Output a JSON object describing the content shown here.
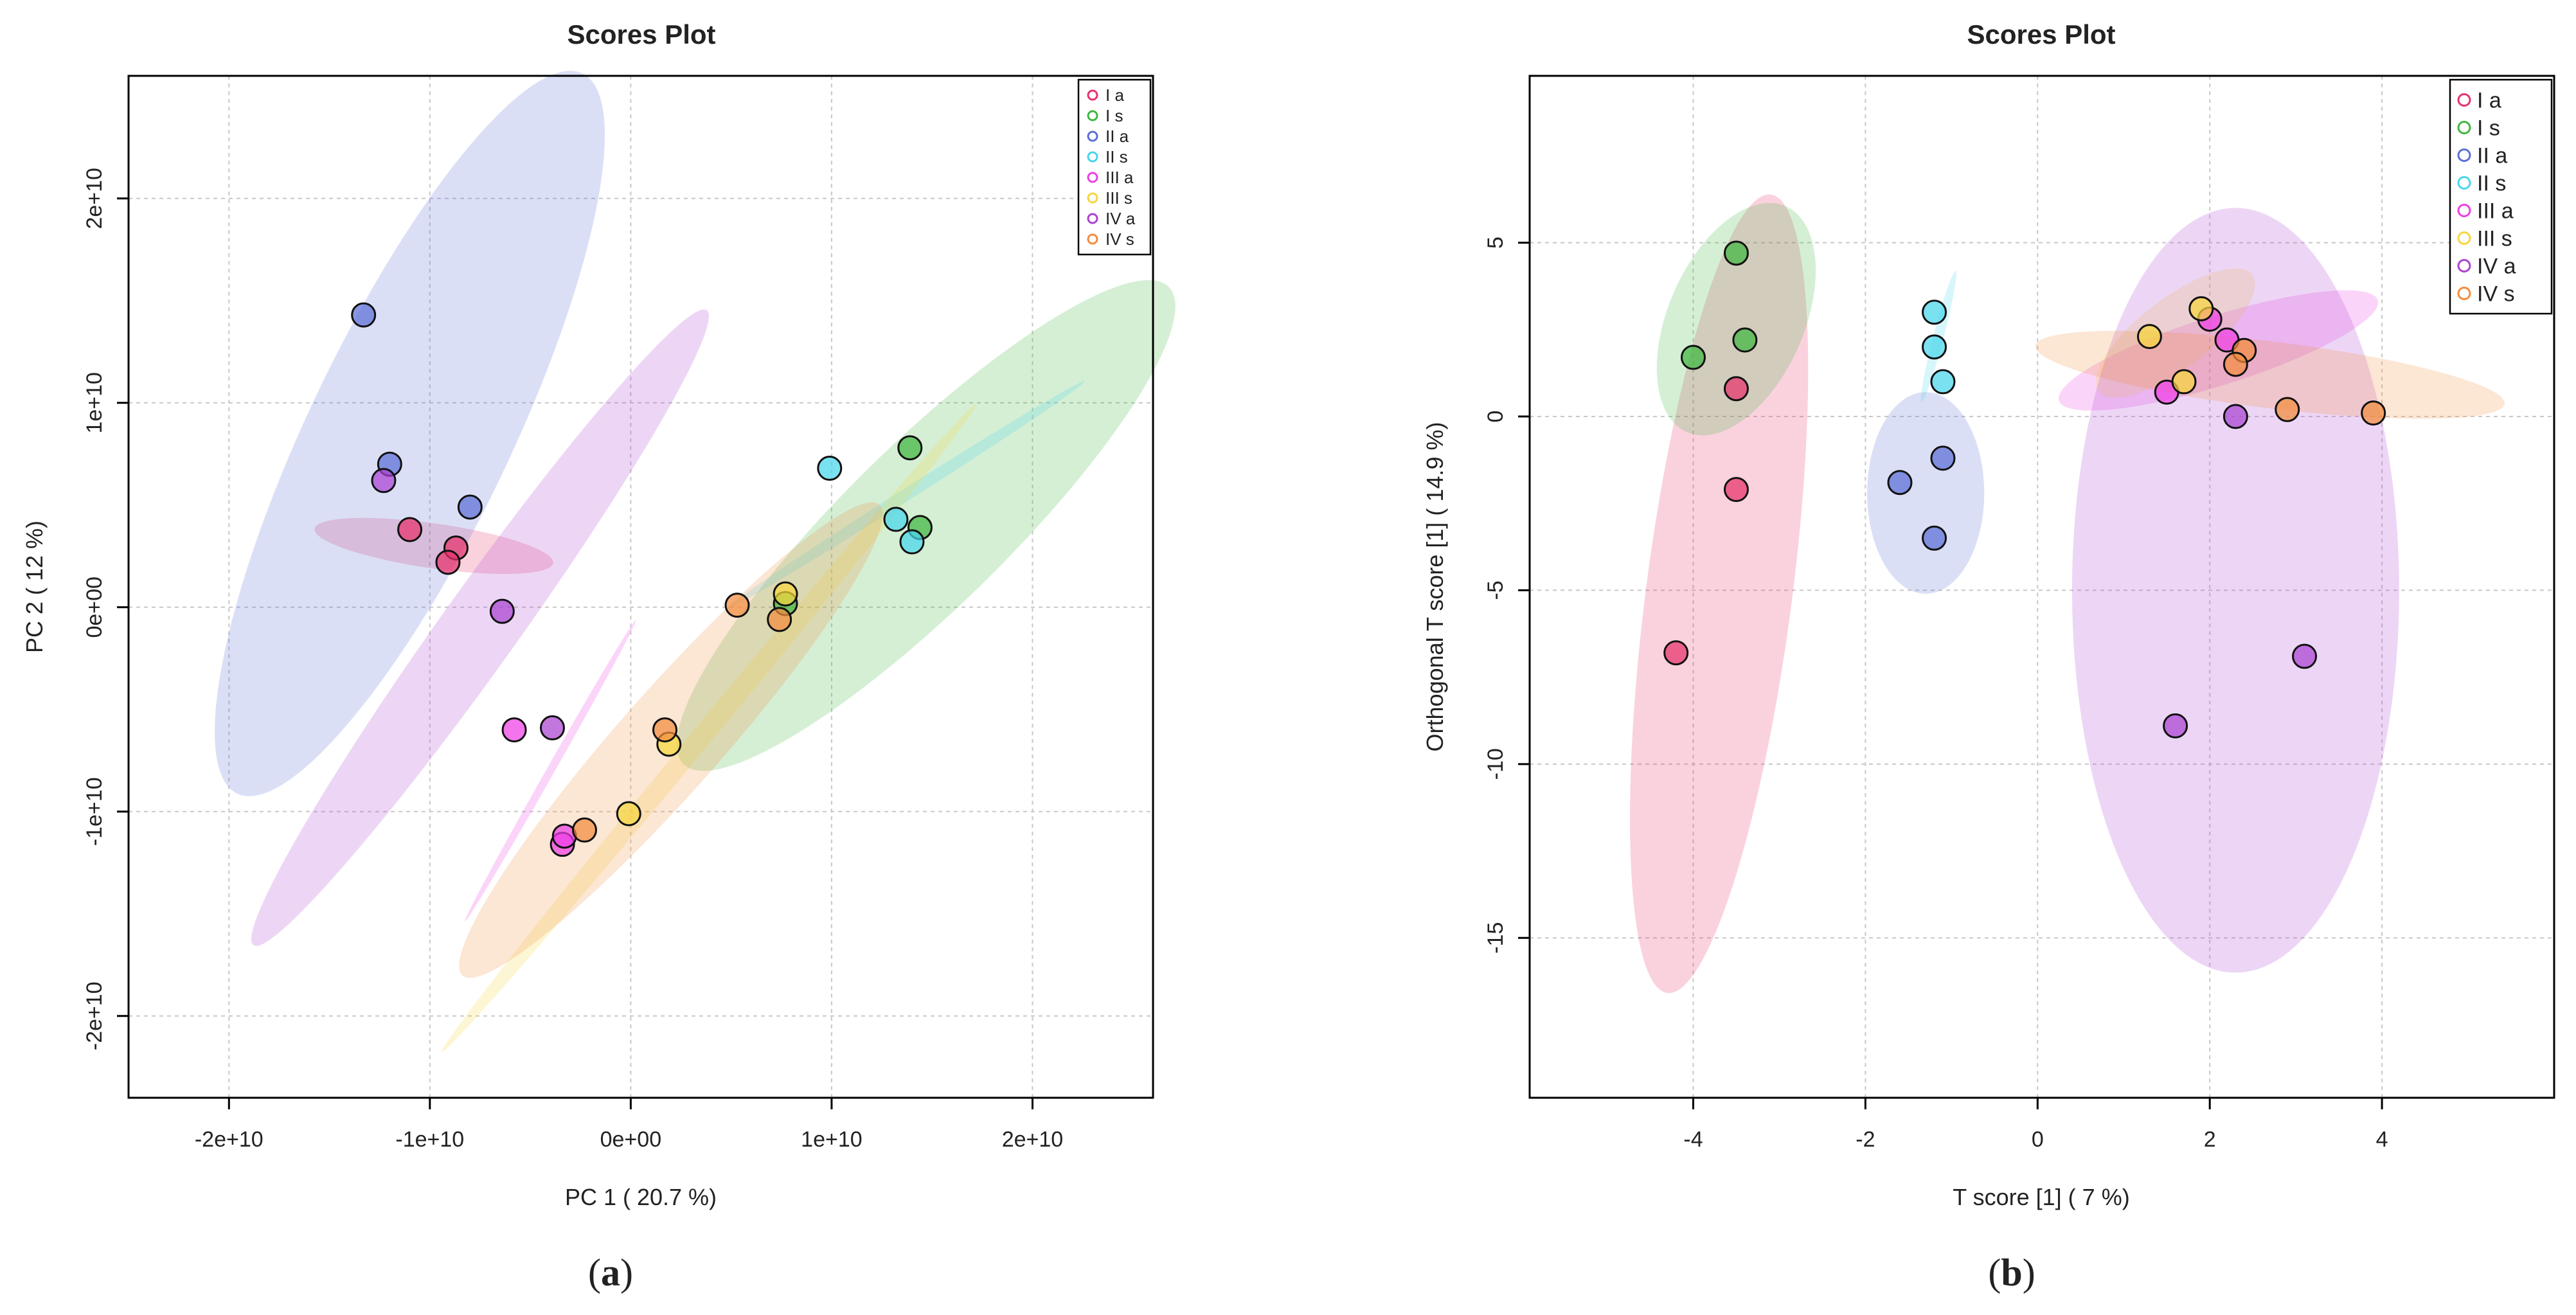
{
  "figure": {
    "caption_a": "a",
    "caption_b": "b"
  },
  "chart_data": [
    {
      "type": "scatter",
      "panel": "a",
      "title": "Scores Plot",
      "xlabel": "PC 1 ( 20.7 %)",
      "ylabel": "PC 2 ( 12 %)",
      "xlim": [
        -25000000000.0,
        26000000000.0
      ],
      "ylim": [
        -24000000000.0,
        26000000000.0
      ],
      "xticks": [
        -20000000000.0,
        -10000000000.0,
        0,
        10000000000.0,
        20000000000.0
      ],
      "xtick_labels": [
        "-2e+10",
        "-1e+10",
        "0e+00",
        "1e+10",
        "2e+10"
      ],
      "yticks": [
        -20000000000.0,
        -10000000000.0,
        0,
        10000000000.0,
        20000000000.0
      ],
      "ytick_labels": [
        "-2e+10",
        "-1e+10",
        "0e+00",
        "1e+10",
        "2e+10"
      ],
      "grid": true,
      "legend_position": "top-right",
      "series": [
        {
          "name": "I a",
          "color": "#e8326b",
          "points": [
            [
              -11000000000.0,
              3800000000.0
            ],
            [
              -8700000000.0,
              2900000000.0
            ],
            [
              -9100000000.0,
              2200000000.0
            ]
          ],
          "ellipse": {
            "cx": -9800000000.0,
            "cy": 3000000000.0,
            "rx": 6000000000.0,
            "ry": 1100000000.0,
            "angle_deg": -8
          }
        },
        {
          "name": "I s",
          "color": "#40b640",
          "points": [
            [
              13900000000.0,
              7800000000.0
            ],
            [
              14400000000.0,
              3900000000.0
            ],
            [
              7700000000.0,
              180000000.0
            ]
          ],
          "ellipse": {
            "cx": 14700000000.0,
            "cy": 4000000000.0,
            "rx": 16800000000.0,
            "ry": 4000000000.0,
            "angle_deg": 44
          }
        },
        {
          "name": "II a",
          "color": "#5b6fd6",
          "points": [
            [
              -13300000000.0,
              14300000000.0
            ],
            [
              -12000000000.0,
              7000000000.0
            ],
            [
              -8000000000.0,
              4900000000.0
            ]
          ],
          "ellipse": {
            "cx": -11000000000.0,
            "cy": 8500000000.0,
            "rx": 19600000000.0,
            "ry": 5000000000.0,
            "angle_deg": 64
          }
        },
        {
          "name": "II s",
          "color": "#47d5ec",
          "points": [
            [
              9900000000.0,
              6800000000.0
            ],
            [
              13200000000.0,
              4300000000.0
            ],
            [
              14000000000.0,
              3200000000.0
            ]
          ],
          "ellipse": {
            "cx": 13700000000.0,
            "cy": 5500000000.0,
            "rx": 10500000000.0,
            "ry": 300000000.0,
            "angle_deg": 32
          }
        },
        {
          "name": "III a",
          "color": "#ee3ee4",
          "points": [
            [
              -5800000000.0,
              -6000000000.0
            ],
            [
              -3400000000.0,
              -11600000000.0
            ],
            [
              -3300000000.0,
              -11200000000.0
            ]
          ],
          "ellipse": {
            "cx": -4000000000.0,
            "cy": -8000000000.0,
            "rx": 8500000000.0,
            "ry": 200000000.0,
            "angle_deg": 60
          }
        },
        {
          "name": "III s",
          "color": "#f7d53d",
          "points": [
            [
              7700000000.0,
              650000000.0
            ],
            [
              1900000000.0,
              -6700000000.0
            ],
            [
              -100000000.0,
              -10100000000.0
            ]
          ],
          "ellipse": {
            "cx": 3900000000.0,
            "cy": -5900000000.0,
            "rx": 20700000000.0,
            "ry": 500000000.0,
            "angle_deg": 50
          }
        },
        {
          "name": "IV a",
          "color": "#ab43d2",
          "points": [
            [
              -12300000000.0,
              6200000000.0
            ],
            [
              -6400000000.0,
              -200000000.0
            ],
            [
              -3900000000.0,
              -5900000000.0
            ]
          ],
          "ellipse": {
            "cx": -7500000000.0,
            "cy": -1000000000.0,
            "rx": 19200000000.0,
            "ry": 1900000000.0,
            "angle_deg": 54
          }
        },
        {
          "name": "IV s",
          "color": "#f28c3d",
          "points": [
            [
              5300000000.0,
              100000000.0
            ],
            [
              7400000000.0,
              -600000000.0
            ],
            [
              1700000000.0,
              -6000000000.0
            ],
            [
              -2300000000.0,
              -10900000000.0
            ]
          ],
          "ellipse": {
            "cx": 2000000000.0,
            "cy": -6500000000.0,
            "rx": 15500000000.0,
            "ry": 2500000000.0,
            "angle_deg": 48
          }
        }
      ]
    },
    {
      "type": "scatter",
      "panel": "b",
      "title": "Scores Plot",
      "xlabel": "T score [1] ( 7 %)",
      "ylabel": "Orthogonal T score [1] ( 14.9 %)",
      "xlim": [
        -5.9,
        6.0
      ],
      "ylim": [
        -19.6,
        9.8
      ],
      "xticks": [
        -4,
        -2,
        0,
        2,
        4
      ],
      "xtick_labels": [
        "-4",
        "-2",
        "0",
        "2",
        "4"
      ],
      "yticks": [
        -15,
        -10,
        -5,
        0,
        5
      ],
      "ytick_labels": [
        "-15",
        "-10",
        "-5",
        "0",
        "5"
      ],
      "grid": true,
      "legend_position": "top-right",
      "series": [
        {
          "name": "I a",
          "color": "#e8326b",
          "points": [
            [
              -3.5,
              0.8
            ],
            [
              -3.5,
              -2.1
            ],
            [
              -4.2,
              -6.8
            ]
          ],
          "ellipse": {
            "cx": -3.7,
            "cy": -5.1,
            "rx": 11.5,
            "ry": 0.85,
            "angle_deg": 87
          }
        },
        {
          "name": "I s",
          "color": "#40b640",
          "points": [
            [
              -3.5,
              4.7
            ],
            [
              -4.0,
              1.7
            ],
            [
              -3.4,
              2.2
            ]
          ],
          "ellipse": {
            "cx": -3.5,
            "cy": 2.8,
            "rx": 3.3,
            "ry": 0.8,
            "angle_deg": 80
          }
        },
        {
          "name": "II a",
          "color": "#5b6fd6",
          "points": [
            [
              -1.6,
              -1.9
            ],
            [
              -1.1,
              -1.2
            ],
            [
              -1.2,
              -3.5
            ]
          ],
          "ellipse": {
            "cx": -1.3,
            "cy": -2.2,
            "rx": 2.9,
            "ry": 0.68,
            "angle_deg": 90
          }
        },
        {
          "name": "II s",
          "color": "#47d5ec",
          "points": [
            [
              -1.2,
              3.0
            ],
            [
              -1.2,
              2.0
            ],
            [
              -1.1,
              1.0
            ]
          ],
          "ellipse": {
            "cx": -1.15,
            "cy": 2.3,
            "rx": 1.9,
            "ry": 0.06,
            "angle_deg": 84
          }
        },
        {
          "name": "III a",
          "color": "#ee3ee4",
          "points": [
            [
              2.0,
              2.8
            ],
            [
              2.2,
              2.2
            ],
            [
              1.5,
              0.7
            ]
          ],
          "ellipse": {
            "cx": 2.1,
            "cy": 1.9,
            "rx": 2.35,
            "ry": 0.58,
            "angle_deg": 38
          }
        },
        {
          "name": "III s",
          "color": "#f7d53d",
          "points": [
            [
              1.9,
              3.1
            ],
            [
              1.3,
              2.3
            ],
            [
              1.7,
              1.0
            ]
          ],
          "ellipse": {
            "cx": 1.6,
            "cy": 2.4,
            "rx": 1.9,
            "ry": 0.45,
            "angle_deg": 62
          }
        },
        {
          "name": "IV a",
          "color": "#ab43d2",
          "points": [
            [
              2.3,
              0.0
            ],
            [
              3.1,
              -6.9
            ],
            [
              1.6,
              -8.9
            ]
          ],
          "ellipse": {
            "cx": 2.3,
            "cy": -5.0,
            "rx": 11.0,
            "ry": 1.9,
            "angle_deg": 90
          }
        },
        {
          "name": "IV s",
          "color": "#f28c3d",
          "points": [
            [
              2.4,
              1.9
            ],
            [
              2.3,
              1.5
            ],
            [
              2.9,
              0.2
            ],
            [
              3.9,
              0.1
            ]
          ],
          "ellipse": {
            "cx": 2.7,
            "cy": 1.2,
            "rx": 2.85,
            "ry": 0.8,
            "angle_deg": -17
          }
        }
      ]
    }
  ]
}
